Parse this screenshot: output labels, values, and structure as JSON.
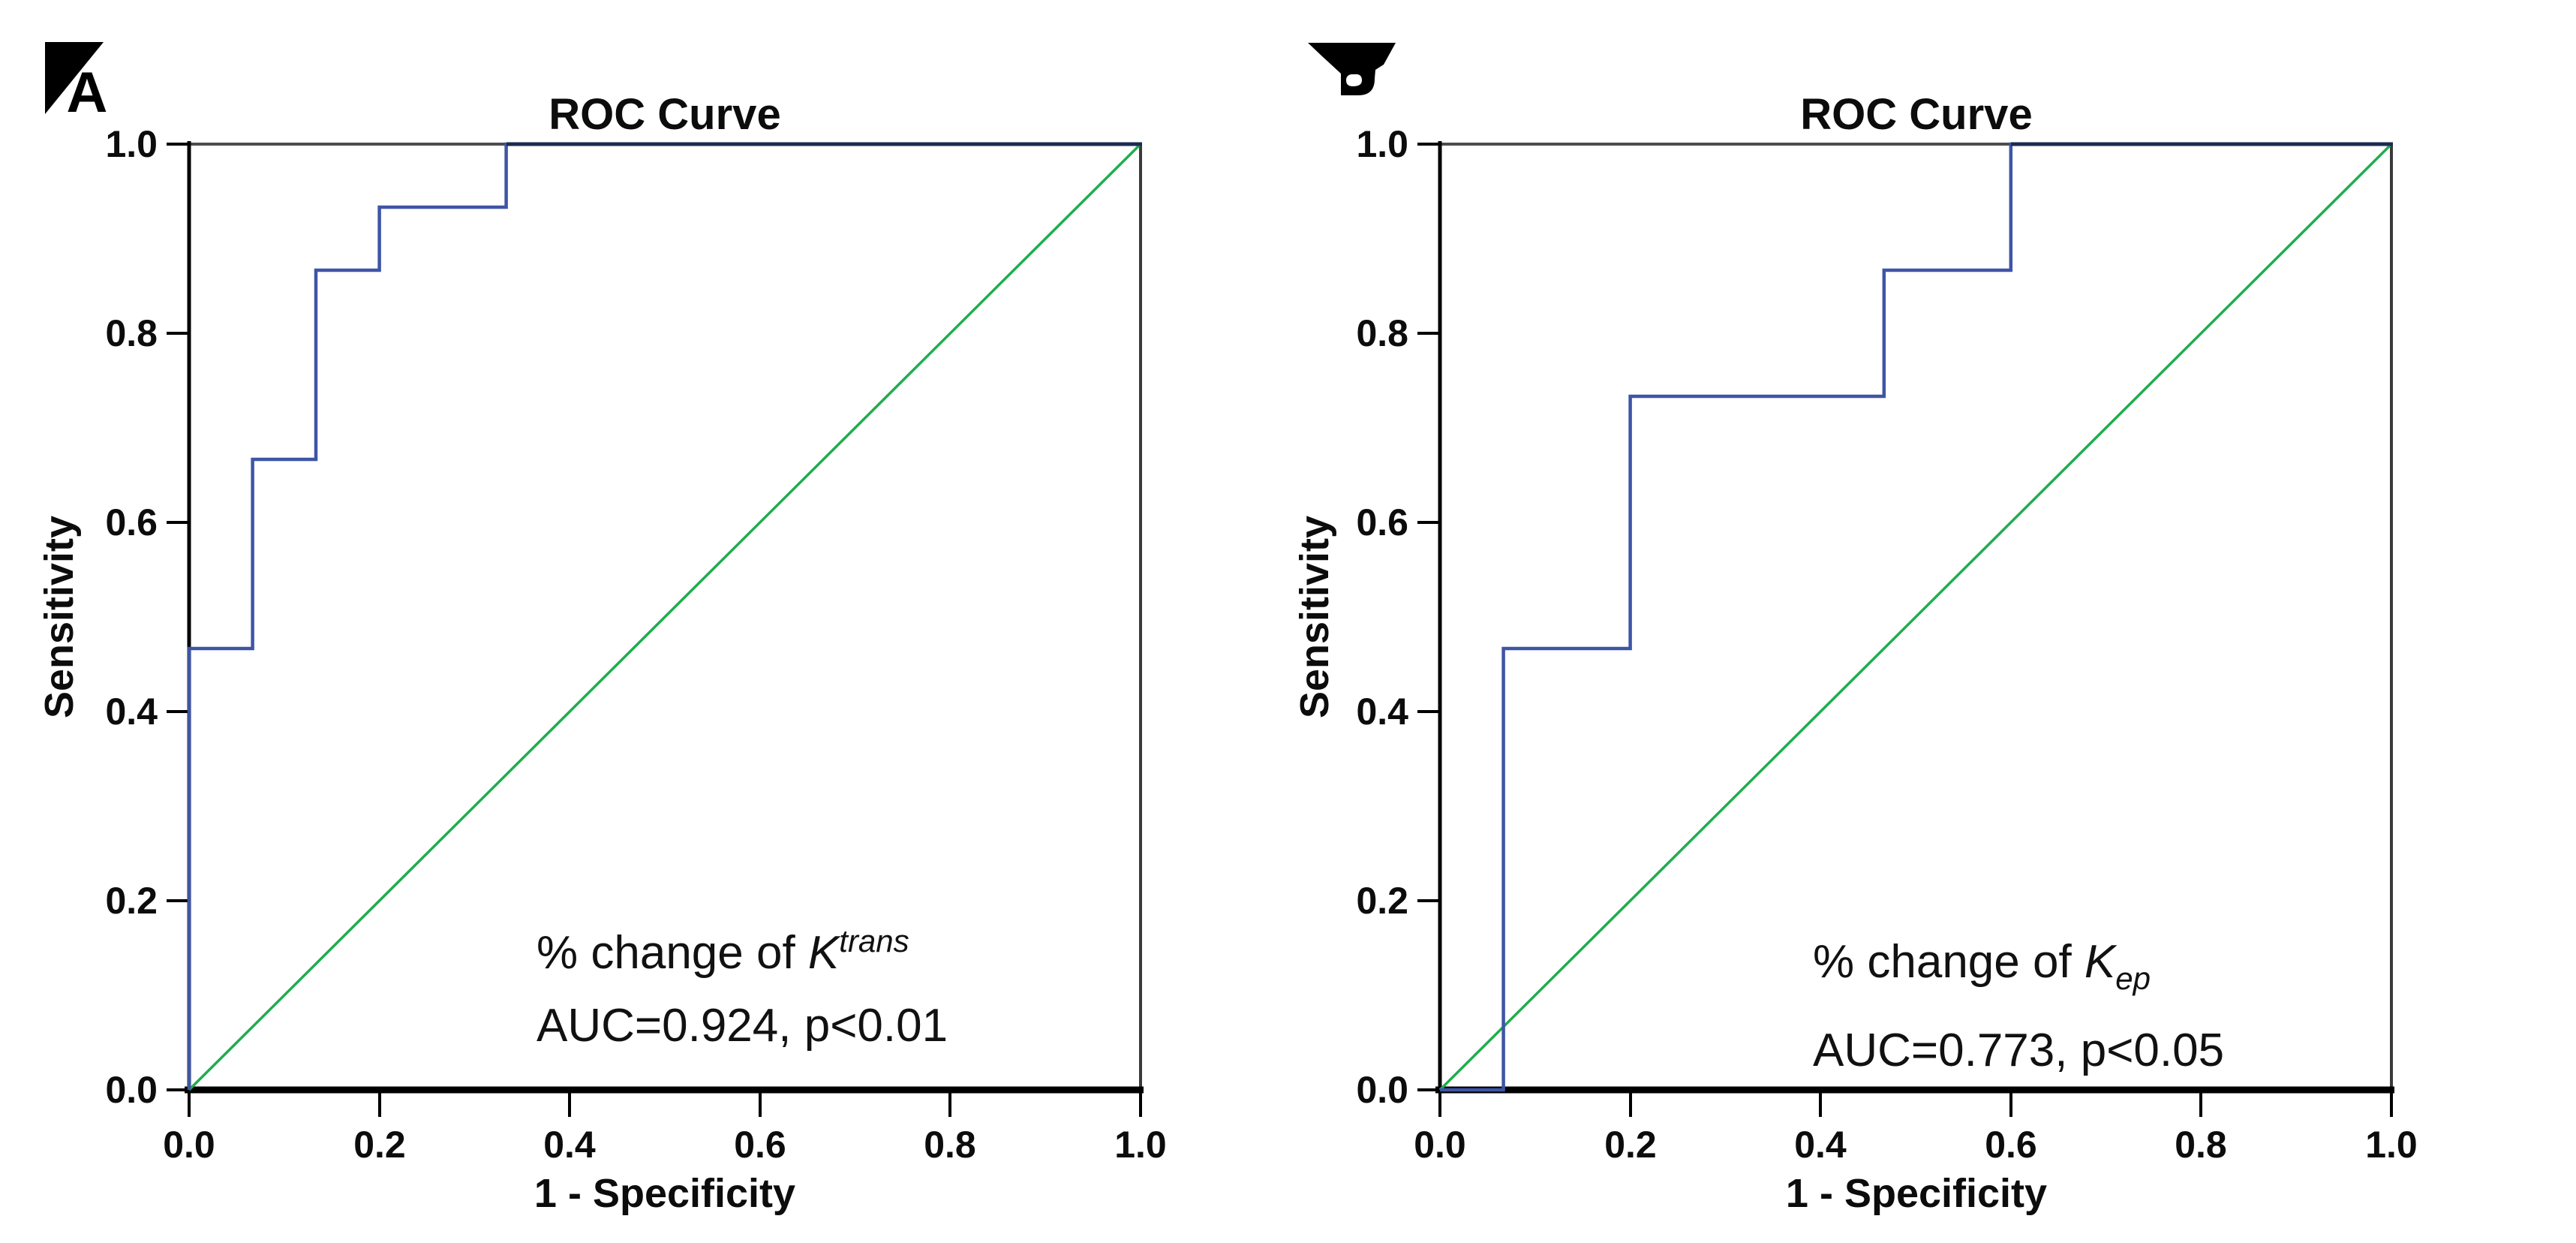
{
  "figure": {
    "panel_a": {
      "marker": "A",
      "title": "ROC Curve",
      "xlabel": "1 - Specificity",
      "ylabel": "Sensitivity",
      "annotation": {
        "prefix": "% change of ",
        "symbol": "K",
        "script": "trans",
        "script_position": "superscript"
      },
      "annotation_line2": "AUC=0.924, p<0.01"
    },
    "panel_b": {
      "marker": "B",
      "title": "ROC Curve",
      "xlabel": "1 - Specificity",
      "ylabel": "Sensitivity",
      "annotation": {
        "prefix": "% change of ",
        "symbol": "K",
        "script": "ep",
        "script_position": "subscript"
      },
      "annotation_line2": "AUC=0.773, p<0.05"
    }
  },
  "axis": {
    "x_ticks": [
      "0.0",
      "0.2",
      "0.4",
      "0.6",
      "0.8",
      "1.0"
    ],
    "y_ticks": [
      "1.0",
      "0.8",
      "0.6",
      "0.4",
      "0.2",
      "0.0"
    ]
  },
  "colors": {
    "roc_curve": "#3E55A6",
    "roc_top_overlap": "#1C2A52",
    "reference_line": "#1FAD4E",
    "axis": "#000000",
    "border": "#4D4D4D"
  },
  "chart_data": [
    {
      "type": "line",
      "subtype": "roc-step",
      "panel": "A",
      "title": "ROC Curve",
      "xlabel": "1 - Specificity",
      "ylabel": "Sensitivity",
      "xlim": [
        0,
        1
      ],
      "ylim": [
        0,
        1
      ],
      "x_ticks": [
        0.0,
        0.2,
        0.4,
        0.6,
        0.8,
        1.0
      ],
      "y_ticks": [
        0.0,
        0.2,
        0.4,
        0.6,
        0.8,
        1.0
      ],
      "grid": false,
      "legend": false,
      "series": [
        {
          "name": "% change of Ktrans ROC",
          "color": "#3E55A6",
          "points": [
            [
              0,
              0
            ],
            [
              0,
              0.4667
            ],
            [
              0.0667,
              0.4667
            ],
            [
              0.0667,
              0.6667
            ],
            [
              0.1333,
              0.6667
            ],
            [
              0.1333,
              0.8667
            ],
            [
              0.2,
              0.8667
            ],
            [
              0.2,
              0.9333
            ],
            [
              0.3333,
              0.9333
            ],
            [
              0.3333,
              1.0
            ],
            [
              1.0,
              1.0
            ]
          ]
        },
        {
          "name": "reference diagonal",
          "color": "#1FAD4E",
          "points": [
            [
              0,
              0
            ],
            [
              1,
              1
            ]
          ]
        }
      ],
      "auc": 0.924,
      "p_value": "p<0.01"
    },
    {
      "type": "line",
      "subtype": "roc-step",
      "panel": "B",
      "title": "ROC Curve",
      "xlabel": "1 - Specificity",
      "ylabel": "Sensitivity",
      "xlim": [
        0,
        1
      ],
      "ylim": [
        0,
        1
      ],
      "x_ticks": [
        0.0,
        0.2,
        0.4,
        0.6,
        0.8,
        1.0
      ],
      "y_ticks": [
        0.0,
        0.2,
        0.4,
        0.6,
        0.8,
        1.0
      ],
      "grid": false,
      "legend": false,
      "series": [
        {
          "name": "% change of Kep ROC",
          "color": "#3E55A6",
          "points": [
            [
              0,
              0
            ],
            [
              0.0667,
              0
            ],
            [
              0.0667,
              0.4667
            ],
            [
              0.2,
              0.4667
            ],
            [
              0.2,
              0.7333
            ],
            [
              0.4667,
              0.7333
            ],
            [
              0.4667,
              0.8667
            ],
            [
              0.6,
              0.8667
            ],
            [
              0.6,
              1.0
            ],
            [
              1.0,
              1.0
            ]
          ]
        },
        {
          "name": "reference diagonal",
          "color": "#1FAD4E",
          "points": [
            [
              0,
              0
            ],
            [
              1,
              1
            ]
          ]
        }
      ],
      "auc": 0.773,
      "p_value": "p<0.05"
    }
  ]
}
